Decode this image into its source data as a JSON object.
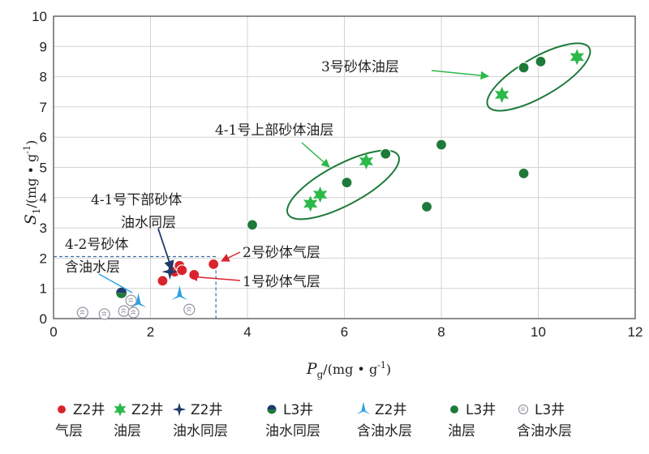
{
  "chart_data": {
    "type": "scatter",
    "xlim": [
      0,
      12
    ],
    "ylim": [
      0,
      10
    ],
    "xticks": [
      "0",
      "2",
      "4",
      "6",
      "8",
      "10",
      "12"
    ],
    "yticks": [
      "0",
      "1",
      "2",
      "3",
      "4",
      "5",
      "6",
      "7",
      "8",
      "9",
      "10"
    ],
    "grid": true,
    "xlabel": {
      "main": "P",
      "sub": "g",
      "unit": "/(mg • g",
      "sup": "-1",
      "close": ")"
    },
    "ylabel": {
      "main": "S",
      "sub": "1",
      "unit": "/(mg • g",
      "sup": "-1",
      "close": ")"
    },
    "legend_position": "bottom",
    "series": [
      {
        "name_line1": "Z2井",
        "name_line2": "气层",
        "marker": "circle",
        "color": "#d9232d",
        "points": [
          [
            2.25,
            1.25
          ],
          [
            2.5,
            1.55
          ],
          [
            2.6,
            1.75
          ],
          [
            2.65,
            1.6
          ],
          [
            2.9,
            1.45
          ],
          [
            3.3,
            1.8
          ]
        ]
      },
      {
        "name_line1": "Z2井",
        "name_line2": "油层",
        "marker": "star6",
        "color": "#2db84a",
        "points": [
          [
            5.3,
            3.8
          ],
          [
            5.5,
            4.1
          ],
          [
            6.45,
            5.2
          ],
          [
            9.25,
            7.4
          ],
          [
            10.8,
            8.65
          ]
        ]
      },
      {
        "name_line1": "Z2井",
        "name_line2": "油水同层",
        "marker": "star4",
        "color": "#1f3a6b",
        "points": [
          [
            2.4,
            1.55
          ]
        ]
      },
      {
        "name_line1": "L3井",
        "name_line2": "油水同层",
        "marker": "half-circle",
        "color": "#1f3a6b",
        "color2": "#1e7a3a",
        "points": [
          [
            1.4,
            0.85
          ]
        ]
      },
      {
        "name_line1": "Z2井",
        "name_line2": "含油水层",
        "marker": "tri-star",
        "color": "#29a3e0",
        "points": [
          [
            1.75,
            0.55
          ],
          [
            2.6,
            0.8
          ]
        ]
      },
      {
        "name_line1": "L3井",
        "name_line2": "油层",
        "marker": "circle",
        "color": "#1e7a3a",
        "points": [
          [
            4.1,
            3.1
          ],
          [
            6.05,
            4.5
          ],
          [
            6.85,
            5.45
          ],
          [
            7.7,
            3.7
          ],
          [
            8.0,
            5.75
          ],
          [
            9.7,
            8.3
          ],
          [
            10.05,
            8.5
          ],
          [
            9.7,
            4.8
          ]
        ]
      },
      {
        "name_line1": "L3井",
        "name_line2": "含油水层",
        "marker": "swirl",
        "color": "#9a9aa8",
        "points": [
          [
            0.6,
            0.2
          ],
          [
            1.05,
            0.15
          ],
          [
            1.45,
            0.25
          ],
          [
            1.65,
            0.2
          ],
          [
            1.6,
            0.6
          ],
          [
            2.8,
            0.3
          ]
        ]
      }
    ],
    "annotations": [
      {
        "text": "3号砂体油层"
      },
      {
        "text": "4-1号上部砂体油层"
      },
      {
        "text_line1": "4-1号下部砂体",
        "text_line2": "油水同层"
      },
      {
        "text_line1": "4-2号砂体",
        "text_line2": "含油水层"
      },
      {
        "text": "2号砂体气层"
      },
      {
        "text": "1号砂体气层"
      }
    ]
  }
}
